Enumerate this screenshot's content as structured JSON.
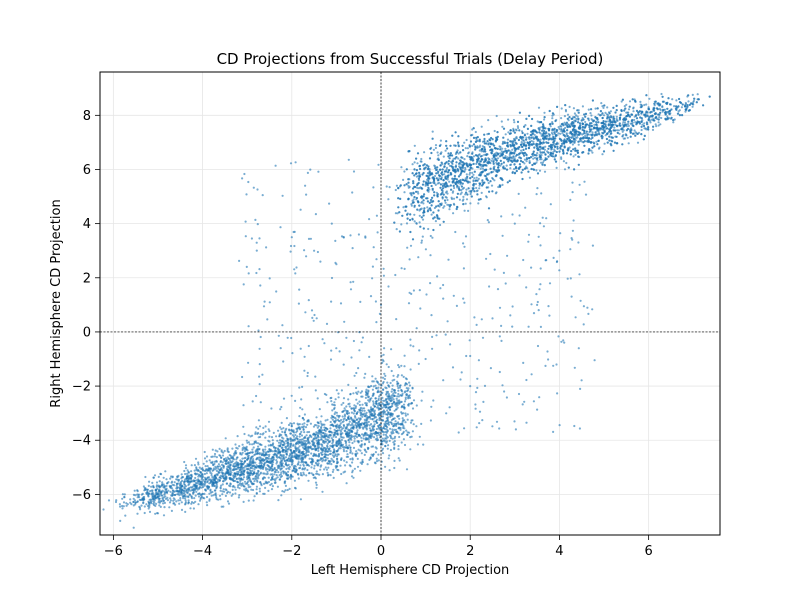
{
  "chart_data": {
    "type": "scatter",
    "title": "CD Projections from Successful Trials (Delay Period)",
    "xlabel": "Left Hemisphere CD Projection",
    "ylabel": "Right Hemisphere CD Projection",
    "xlim": [
      -6.3,
      7.6
    ],
    "ylim": [
      -7.5,
      9.6
    ],
    "xticks": [
      -6,
      -4,
      -2,
      0,
      2,
      4,
      6
    ],
    "yticks": [
      -6,
      -4,
      -2,
      0,
      2,
      4,
      6,
      8
    ],
    "xtick_labels": [
      "−6",
      "−4",
      "−2",
      "0",
      "2",
      "4",
      "6"
    ],
    "ytick_labels": [
      "−6",
      "−4",
      "−2",
      "0",
      "2",
      "4",
      "6",
      "8"
    ],
    "grid": true,
    "reference_lines": {
      "x": 0,
      "y": 0,
      "style": "dashed"
    },
    "point_color": "#1f77b4",
    "series": [
      {
        "values": "dense point cloud",
        "clusters": [
          {
            "x_range": [
              -5.8,
              0.8
            ],
            "y_range": [
              -6.8,
              -2.5
            ],
            "trend": "rising"
          },
          {
            "x_range": [
              0.5,
              7.1
            ],
            "y_range": [
              3.8,
              8.8
            ],
            "trend": "rising"
          },
          {
            "x_range": [
              -3.5,
              5.0
            ],
            "y_range": [
              -4.0,
              6.5
            ],
            "trend": "sparse transitional"
          }
        ],
        "points": [
          [
            -5.5,
            -6.3
          ],
          [
            -5.0,
            -6.1
          ],
          [
            -4.5,
            -5.9
          ],
          [
            -4.0,
            -5.6
          ],
          [
            -3.5,
            -5.4
          ],
          [
            -3.0,
            -5.2
          ],
          [
            -2.5,
            -5.0
          ],
          [
            -2.0,
            -4.8
          ],
          [
            -1.5,
            -4.5
          ],
          [
            -1.0,
            -4.1
          ],
          [
            -0.5,
            -3.8
          ],
          [
            0.0,
            -3.4
          ],
          [
            0.5,
            -3.0
          ],
          [
            1.0,
            5.4
          ],
          [
            1.5,
            5.7
          ],
          [
            2.0,
            6.0
          ],
          [
            2.5,
            6.4
          ],
          [
            3.0,
            6.8
          ],
          [
            3.5,
            7.2
          ],
          [
            4.0,
            7.5
          ],
          [
            4.5,
            7.8
          ],
          [
            5.0,
            8.0
          ],
          [
            5.5,
            8.1
          ],
          [
            6.0,
            8.3
          ],
          [
            6.5,
            8.4
          ],
          [
            7.0,
            8.4
          ],
          [
            -2.0,
            3.5
          ],
          [
            -1.5,
            3.0
          ],
          [
            -1.0,
            2.5
          ],
          [
            0.0,
            1.0
          ],
          [
            1.0,
            -1.0
          ],
          [
            2.0,
            -2.0
          ],
          [
            3.0,
            4.0
          ],
          [
            4.0,
            3.0
          ],
          [
            3.5,
            1.0
          ],
          [
            2.5,
            0.5
          ]
        ]
      }
    ]
  }
}
